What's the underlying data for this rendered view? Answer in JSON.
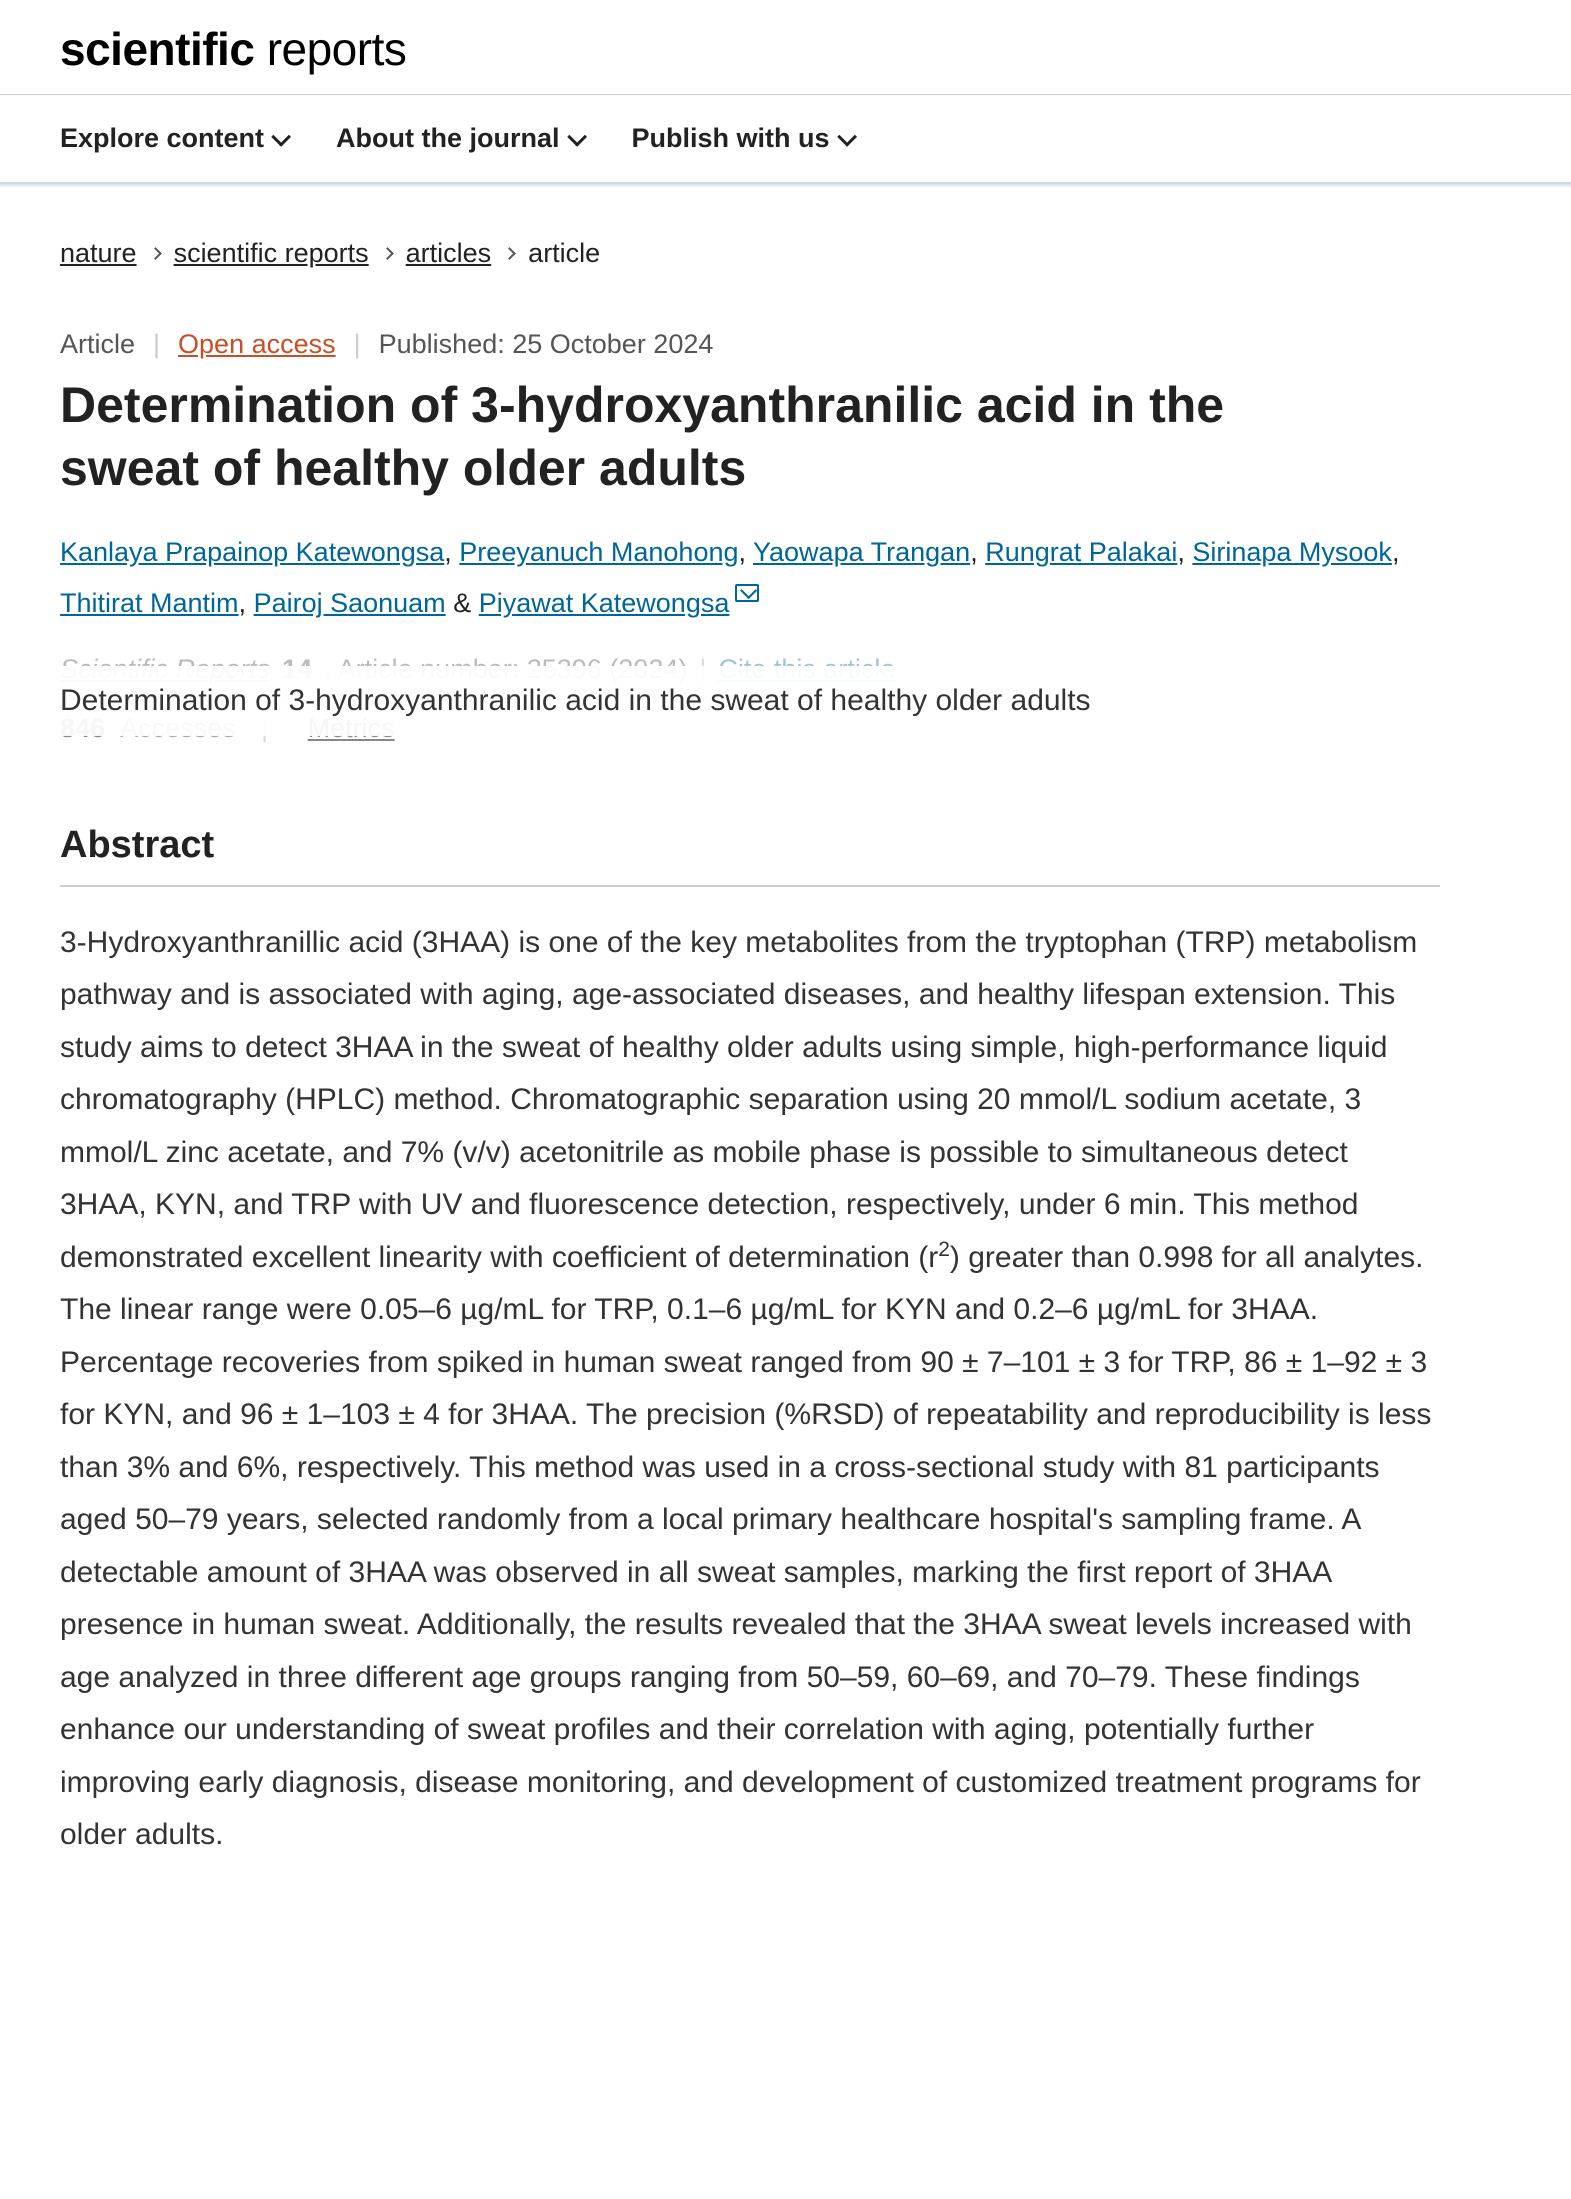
{
  "brand": {
    "bold": "scientific",
    "light": " reports"
  },
  "nav": {
    "items": [
      {
        "label": "Explore content"
      },
      {
        "label": "About the journal"
      },
      {
        "label": "Publish with us"
      }
    ]
  },
  "breadcrumb": {
    "items": [
      {
        "label": "nature",
        "link": true
      },
      {
        "label": "scientific reports",
        "link": true
      },
      {
        "label": "articles",
        "link": true
      },
      {
        "label": "article",
        "link": false
      }
    ]
  },
  "meta": {
    "type": "Article",
    "open_access": "Open access",
    "published_label": "Published: 25 October 2024"
  },
  "title": "Determination of 3-hydroxyanthranilic acid in the sweat of healthy older adults",
  "authors": [
    "Kanlaya Prapainop Katewongsa",
    "Preeyanuch Manohong",
    "Yaowapa Trangan",
    "Rungrat Palakai",
    "Sirinapa Mysook",
    "Thitirat Mantim",
    "Pairoj Saonuam",
    "Piyawat Katewongsa"
  ],
  "author_separator_last": " & ",
  "corresponding_index": 7,
  "citation": {
    "journal": "Scientific Reports",
    "volume": "14",
    "article_number_label": ", Article number: 25396 (2024)",
    "cite_link": "Cite this article"
  },
  "sticky_title": "Determination of 3-hydroxyanthranilic acid in the sweat of healthy older adults",
  "metrics": {
    "accesses_n": "846",
    "accesses_label": "Accesses",
    "metrics_link": "Metrics"
  },
  "abstract": {
    "heading": "Abstract",
    "pre": "3-Hydroxyanthranillic acid (3HAA) is one of the key metabolites from the tryptophan (TRP) metabolism pathway and is associated with aging, age-associated diseases, and healthy lifespan extension. This study aims to detect 3HAA in the sweat of healthy older adults using simple, high-performance liquid chromatography (HPLC) method. Chromatographic separation using 20 mmol/L sodium acetate, 3 mmol/L zinc acetate, and 7% (v/v) acetonitrile as mobile phase is possible to simultaneous detect 3HAA, KYN, and TRP with UV and fluorescence detection, respectively, under 6 min. This method demonstrated excellent linearity with coefficient of determination (r",
    "sup": "2",
    "post": ") greater than 0.998 for all analytes. The linear range were 0.05–6 µg/mL for TRP, 0.1–6 µg/mL for KYN and 0.2–6 µg/mL for 3HAA. Percentage recoveries from spiked in human sweat ranged from 90 ± 7–101 ± 3 for TRP, 86 ± 1–92 ± 3 for KYN, and 96 ± 1–103 ± 4 for 3HAA. The precision (%RSD) of repeatability and reproducibility is less than 3% and 6%, respectively. This method was used in a cross-sectional study with 81 participants aged 50–79 years, selected randomly from a local primary healthcare hospital's sampling frame. A detectable amount of 3HAA was observed in all sweat samples, marking the first report of 3HAA presence in human sweat. Additionally, the results revealed that the 3HAA sweat levels increased with age analyzed in three different age groups ranging from 50–59, 60–69, and 70–79. These findings enhance our understanding of sweat profiles and their correlation with aging, potentially further improving early diagnosis, disease monitoring, and development of customized treatment programs for older adults."
  },
  "colors": {
    "link": "#006699",
    "open_access": "#c74f27",
    "text": "#222222",
    "muted": "#666666",
    "faded": "#bbbbbb",
    "border": "#cccccc"
  }
}
